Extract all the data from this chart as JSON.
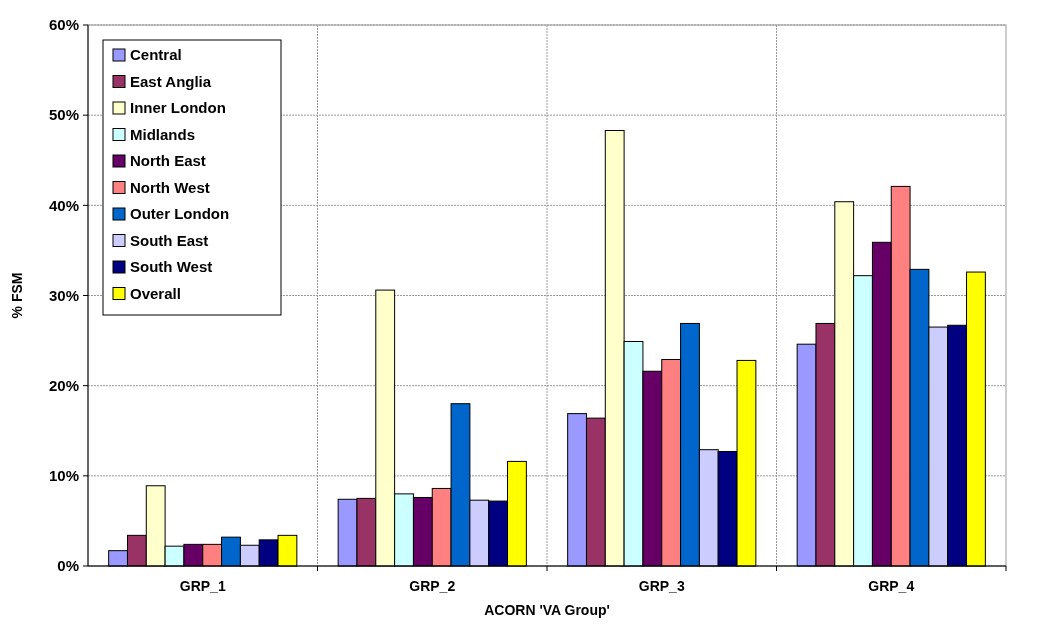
{
  "chart_data": {
    "type": "bar",
    "xlabel": "ACORN 'VA Group'",
    "ylabel": "% FSM",
    "categories": [
      "GRP_1",
      "GRP_2",
      "GRP_3",
      "GRP_4"
    ],
    "series": [
      {
        "name": "Central",
        "color": "#9999ff",
        "values": [
          1.7,
          7.4,
          16.9,
          24.6
        ]
      },
      {
        "name": "East Anglia",
        "color": "#993366",
        "values": [
          3.4,
          7.5,
          16.4,
          26.9
        ]
      },
      {
        "name": "Inner London",
        "color": "#ffffcc",
        "values": [
          8.9,
          30.6,
          48.3,
          40.4
        ]
      },
      {
        "name": "Midlands",
        "color": "#ccffff",
        "values": [
          2.2,
          8.0,
          24.9,
          32.2
        ]
      },
      {
        "name": "North East",
        "color": "#660066",
        "values": [
          2.4,
          7.6,
          21.6,
          35.9
        ]
      },
      {
        "name": "North West",
        "color": "#ff8080",
        "values": [
          2.4,
          8.6,
          22.9,
          42.1
        ]
      },
      {
        "name": "Outer London",
        "color": "#0066cc",
        "values": [
          3.2,
          18.0,
          26.9,
          32.9
        ]
      },
      {
        "name": "South East",
        "color": "#ccccff",
        "values": [
          2.3,
          7.3,
          12.9,
          26.5
        ]
      },
      {
        "name": "South West",
        "color": "#000080",
        "values": [
          2.9,
          7.2,
          12.7,
          26.7
        ]
      },
      {
        "name": "Overall",
        "color": "#ffff00",
        "values": [
          3.4,
          11.6,
          22.8,
          32.6
        ]
      }
    ],
    "ylim": [
      0,
      60
    ],
    "yticks": [
      {
        "value": 0,
        "label": "0%"
      },
      {
        "value": 10,
        "label": "10%"
      },
      {
        "value": 20,
        "label": "20%"
      },
      {
        "value": 30,
        "label": "30%"
      },
      {
        "value": 40,
        "label": "40%"
      },
      {
        "value": 50,
        "label": "50%"
      },
      {
        "value": 60,
        "label": "60%"
      }
    ],
    "grid": true,
    "legend": "top left"
  }
}
